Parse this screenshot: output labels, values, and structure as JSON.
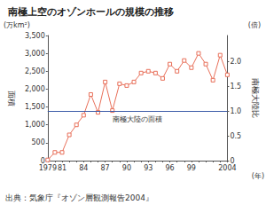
{
  "chart_data": {
    "type": "line",
    "title": "南極上空のオゾンホールの規模の推移",
    "categories": [
      "1979",
      null,
      "81",
      null,
      null,
      "84",
      null,
      null,
      "87",
      null,
      null,
      "90",
      null,
      null,
      "93",
      null,
      null,
      "96",
      null,
      null,
      "99",
      null,
      null,
      null,
      null,
      "2004"
    ],
    "values": [
      20,
      230,
      230,
      720,
      1000,
      1270,
      1850,
      1350,
      2200,
      1400,
      2150,
      2100,
      2200,
      2450,
      2500,
      2450,
      2300,
      2700,
      2500,
      2800,
      2600,
      3000,
      2700,
      2250,
      2950,
      2400
    ],
    "color": "#e8705a",
    "marker": "square",
    "ylabel": "面積",
    "yunit": "(万km²)",
    "ylim": [
      0,
      3500
    ],
    "yticks": [
      0,
      500,
      {
        "value": 1000,
        "label": "1,000"
      },
      {
        "value": 1500,
        "label": "1,500"
      },
      {
        "value": 2000,
        "label": "2,000"
      },
      {
        "value": 2500,
        "label": "2,500"
      },
      {
        "value": 3000,
        "label": "3,000"
      },
      {
        "value": 3500,
        "label": "3,500"
      }
    ],
    "y2label": "南極大陸比",
    "y2unit": "(倍)",
    "y2lim": [
      0,
      2.518
    ],
    "y2ticks": [
      0,
      0.5,
      {
        "value": 1,
        "label": "1.0"
      },
      1.5,
      {
        "value": 2,
        "label": "2.0"
      }
    ],
    "xunit": "(年)",
    "reference_line": {
      "value": 1390,
      "label": "南極大陸の面積",
      "color": "#3b5ba8"
    },
    "source": "出典：気象庁『オゾン層観測報告2004』",
    "grid": false
  }
}
